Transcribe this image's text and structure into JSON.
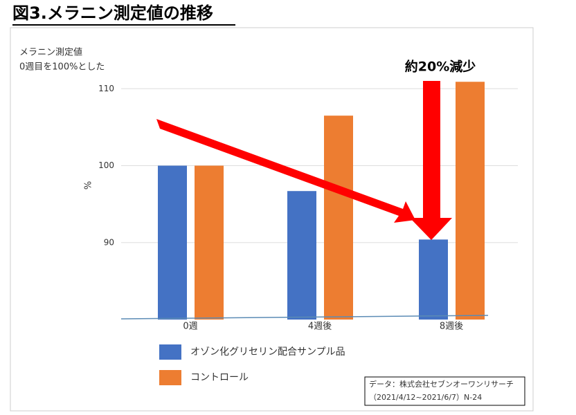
{
  "chart_data": {
    "type": "bar",
    "title": "図3.メラニン測定値の推移",
    "y_note": [
      "メラニン測定値",
      "0週目を100%とした"
    ],
    "ylabel": "%",
    "annotation": "約20%減少",
    "source": [
      "データ：株式会社セブンオーワンリサーチ",
      "（2021/4/12~2021/6/7）N-24"
    ],
    "categories": [
      "0週",
      "4週後",
      "8週後"
    ],
    "series": [
      {
        "name": "オゾン化グリセリン配合サンプル品",
        "color": "#4472c4",
        "values": [
          100,
          96.7,
          90.4
        ]
      },
      {
        "name": "コントロール",
        "color": "#ed7d31",
        "values": [
          100,
          106.5,
          110.9
        ]
      }
    ],
    "ylim": [
      80,
      112
    ],
    "yticks": [
      90,
      100,
      110
    ],
    "grid": true
  }
}
